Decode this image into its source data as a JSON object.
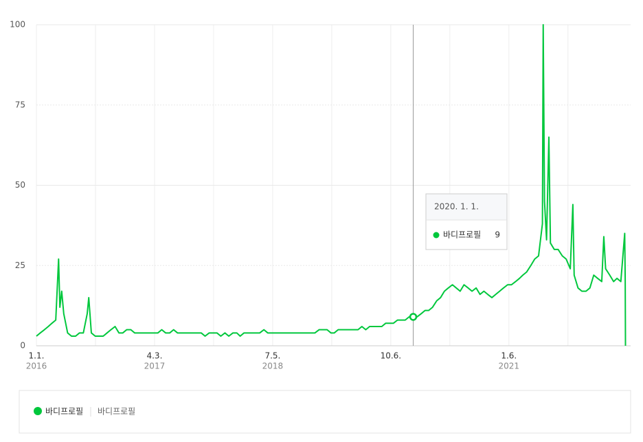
{
  "chart_data": {
    "type": "line",
    "x": [
      "2016-01-01",
      "2016-01-16",
      "2016-02-01",
      "2016-02-16",
      "2016-03-01",
      "2016-03-16",
      "2016-03-27",
      "2016-04-01",
      "2016-04-08",
      "2016-04-16",
      "2016-05-01",
      "2016-05-16",
      "2016-06-01",
      "2016-06-16",
      "2016-07-01",
      "2016-07-16",
      "2016-07-22",
      "2016-08-01",
      "2016-08-16",
      "2016-09-01",
      "2016-09-16",
      "2016-10-01",
      "2016-10-16",
      "2016-11-01",
      "2016-11-16",
      "2016-12-01",
      "2016-12-16",
      "2017-01-01",
      "2017-01-16",
      "2017-02-01",
      "2017-02-16",
      "2017-03-01",
      "2017-03-16",
      "2017-04-01",
      "2017-04-16",
      "2017-05-01",
      "2017-05-16",
      "2017-06-01",
      "2017-06-16",
      "2017-07-01",
      "2017-07-16",
      "2017-08-01",
      "2017-08-16",
      "2017-09-01",
      "2017-09-16",
      "2017-10-01",
      "2017-10-16",
      "2017-11-01",
      "2017-11-16",
      "2017-12-01",
      "2017-12-16",
      "2018-01-01",
      "2018-01-16",
      "2018-02-01",
      "2018-02-16",
      "2018-03-01",
      "2018-03-16",
      "2018-04-01",
      "2018-04-16",
      "2018-05-01",
      "2018-05-16",
      "2018-06-01",
      "2018-06-16",
      "2018-07-01",
      "2018-07-16",
      "2018-08-01",
      "2018-08-16",
      "2018-09-01",
      "2018-09-16",
      "2018-10-01",
      "2018-10-16",
      "2018-11-01",
      "2018-11-16",
      "2018-12-01",
      "2018-12-16",
      "2019-01-01",
      "2019-01-16",
      "2019-02-01",
      "2019-02-16",
      "2019-03-01",
      "2019-03-16",
      "2019-04-01",
      "2019-04-16",
      "2019-05-01",
      "2019-05-16",
      "2019-06-01",
      "2019-06-16",
      "2019-07-01",
      "2019-07-16",
      "2019-08-01",
      "2019-08-16",
      "2019-09-01",
      "2019-09-16",
      "2019-10-01",
      "2019-10-16",
      "2019-11-01",
      "2019-11-16",
      "2019-12-01",
      "2019-12-16",
      "2020-01-01",
      "2020-01-16",
      "2020-02-01",
      "2020-02-16",
      "2020-03-01",
      "2020-03-16",
      "2020-04-01",
      "2020-04-16",
      "2020-05-01",
      "2020-05-16",
      "2020-06-01",
      "2020-06-16",
      "2020-07-01",
      "2020-07-16",
      "2020-08-01",
      "2020-08-16",
      "2020-09-01",
      "2020-09-16",
      "2020-10-01",
      "2020-10-16",
      "2020-11-01",
      "2020-11-16",
      "2020-12-01",
      "2020-12-16",
      "2021-01-01",
      "2021-01-16",
      "2021-02-01",
      "2021-02-16",
      "2021-03-01",
      "2021-03-16",
      "2021-04-01",
      "2021-04-16",
      "2021-05-01",
      "2021-05-16",
      "2021-05-19",
      "2021-05-24",
      "2021-06-01",
      "2021-06-10",
      "2021-06-16",
      "2021-07-01",
      "2021-07-16",
      "2021-08-01",
      "2021-08-16",
      "2021-09-01",
      "2021-09-11",
      "2021-09-16",
      "2021-10-01",
      "2021-10-16",
      "2021-11-01",
      "2021-11-16",
      "2021-12-01",
      "2021-12-16",
      "2022-01-01",
      "2022-01-09",
      "2022-01-16",
      "2022-02-01",
      "2022-02-16",
      "2022-03-01",
      "2022-03-16",
      "2022-03-31",
      "2022-04-02",
      "2022-04-03"
    ],
    "series": [
      {
        "name": "바디프로필",
        "color": "#00c73c",
        "values": [
          3,
          4,
          5,
          6,
          7,
          8,
          27,
          12,
          17,
          10,
          4,
          3,
          3,
          4,
          4,
          10,
          15,
          4,
          3,
          3,
          3,
          4,
          5,
          6,
          4,
          4,
          5,
          5,
          4,
          4,
          4,
          4,
          4,
          4,
          4,
          5,
          4,
          4,
          5,
          4,
          4,
          4,
          4,
          4,
          4,
          4,
          3,
          4,
          4,
          4,
          3,
          4,
          3,
          4,
          4,
          3,
          4,
          4,
          4,
          4,
          4,
          5,
          4,
          4,
          4,
          4,
          4,
          4,
          4,
          4,
          4,
          4,
          4,
          4,
          4,
          5,
          5,
          5,
          4,
          4,
          5,
          5,
          5,
          5,
          5,
          5,
          6,
          5,
          6,
          6,
          6,
          6,
          7,
          7,
          7,
          8,
          8,
          8,
          9,
          9,
          9,
          10,
          11,
          11,
          12,
          14,
          15,
          17,
          18,
          19,
          18,
          17,
          19,
          18,
          17,
          18,
          16,
          17,
          16,
          15,
          16,
          17,
          18,
          19,
          19,
          20,
          21,
          22,
          23,
          25,
          27,
          28,
          38,
          100,
          45,
          33,
          65,
          32,
          30,
          30,
          28,
          27,
          24,
          44,
          22,
          18,
          17,
          17,
          18,
          22,
          21,
          20,
          34,
          24,
          22,
          20,
          21,
          20,
          35,
          20,
          0
        ]
      }
    ],
    "xlim": [
      "2016-01-01",
      "2022-04-23"
    ],
    "xticks": [
      {
        "value": "2016-01-01",
        "label": "1.1."
      },
      {
        "value": "2017-04-03",
        "label": "4.3."
      },
      {
        "value": "2018-07-05",
        "label": "7.5."
      },
      {
        "value": "2019-10-06",
        "label": "10.6."
      },
      {
        "value": "2021-01-06",
        "label": "1.6."
      }
    ],
    "xtick_years": [
      "2016",
      "2017",
      "2018",
      null,
      "2021"
    ],
    "ylim": [
      0,
      100
    ],
    "yticks": [
      0,
      25,
      50,
      75,
      100
    ],
    "grid": true,
    "tooltip_title": "2020. 1. 1.",
    "legend_keyword": "바디프로필"
  }
}
